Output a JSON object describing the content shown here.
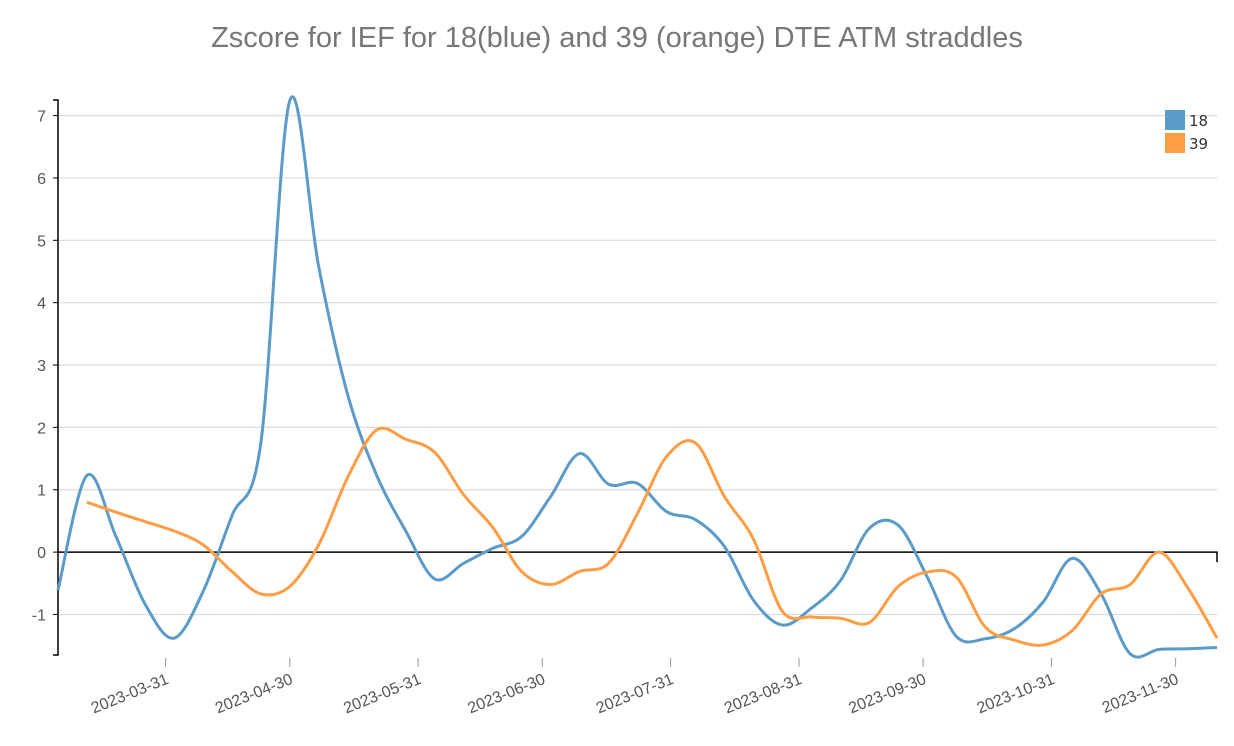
{
  "chart_data": {
    "type": "line",
    "title": "Zscore for IEF for 18(blue) and 39 (orange)  DTE ATM straddles",
    "xlabel": "",
    "ylabel": "",
    "x_start": "2023-03-05",
    "x_step_days": 7,
    "x_range": [
      "2023-03-05",
      "2023-12-10"
    ],
    "ylim": [
      -1.65,
      7.25
    ],
    "y_ticks": [
      "-1",
      "0",
      "1",
      "2",
      "3",
      "4",
      "5",
      "6",
      "7"
    ],
    "x_ticks": [
      "2023-03-31",
      "2023-04-30",
      "2023-05-31",
      "2023-06-30",
      "2023-07-31",
      "2023-08-31",
      "2023-09-30",
      "2023-10-31",
      "2023-11-30"
    ],
    "grid": true,
    "legend_position": "top-right",
    "series": [
      {
        "name": "18",
        "color": "#5b9bc8",
        "start_index": 0,
        "values": [
          -0.61,
          1.23,
          0.25,
          -0.83,
          -1.38,
          -0.64,
          0.58,
          1.75,
          7.24,
          4.57,
          2.52,
          1.23,
          0.34,
          -0.43,
          -0.18,
          0.06,
          0.25,
          0.89,
          1.58,
          1.09,
          1.1,
          0.65,
          0.52,
          0.09,
          -0.77,
          -1.17,
          -0.9,
          -0.46,
          0.38,
          0.43,
          -0.4,
          -1.35,
          -1.39,
          -1.23,
          -0.8,
          -0.1,
          -0.67,
          -1.63,
          -1.56,
          -1.55,
          -1.53
        ]
      },
      {
        "name": "39",
        "color": "#ff9d45",
        "start_index": 1,
        "values": [
          0.8,
          0.64,
          0.49,
          0.34,
          0.12,
          -0.31,
          -0.67,
          -0.55,
          0.12,
          1.2,
          1.96,
          1.81,
          1.6,
          0.92,
          0.4,
          -0.31,
          -0.52,
          -0.31,
          -0.18,
          0.62,
          1.53,
          1.75,
          0.89,
          0.21,
          -0.95,
          -1.04,
          -1.06,
          -1.13,
          -0.55,
          -0.32,
          -0.4,
          -1.2,
          -1.41,
          -1.49,
          -1.26,
          -0.67,
          -0.52,
          0.0,
          -0.58,
          -1.38
        ]
      }
    ]
  }
}
